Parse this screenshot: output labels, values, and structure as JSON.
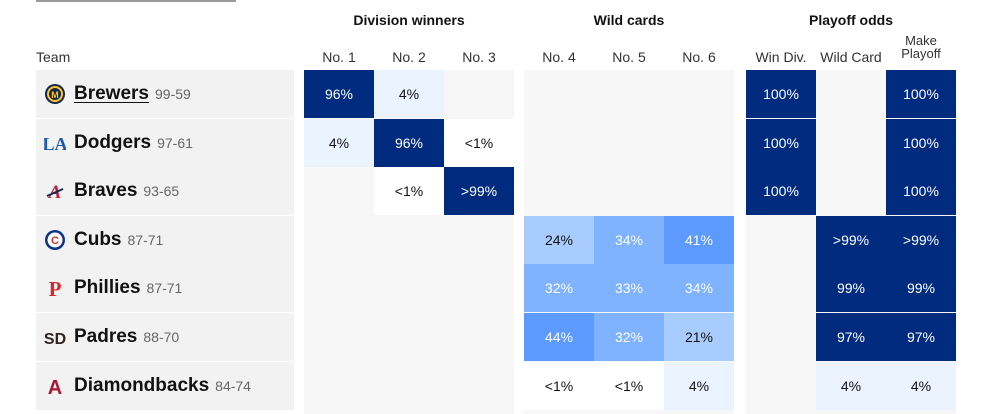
{
  "headers": {
    "team": "Team",
    "groups": [
      "Division winners",
      "Wild cards",
      "Playoff odds"
    ],
    "columns": [
      [
        "No. 1"
      ],
      [
        "No. 2"
      ],
      [
        "No. 3"
      ],
      [
        "No. 4"
      ],
      [
        "No. 5"
      ],
      [
        "No. 6"
      ],
      [
        "Win Div."
      ],
      [
        "Wild Card"
      ],
      [
        "Make",
        "Playoff"
      ]
    ]
  },
  "colors": {
    "dark": "#002b7f",
    "mid": "#5c9aff",
    "midlight": "#7fb2ff",
    "light": "#a9ccff",
    "pale": "#eaf3ff",
    "blank": "#f7f7f7"
  },
  "teams": [
    {
      "name": "Brewers",
      "record": "99-59",
      "logo": "brewers-logo",
      "linked": true,
      "cells": [
        "96%",
        "4%",
        "",
        "",
        "",
        "",
        "100%",
        "",
        "100%"
      ],
      "shades": [
        "dark",
        "pale",
        "none",
        "none",
        "none",
        "none",
        "dark",
        "none",
        "dark"
      ]
    },
    {
      "name": "Dodgers",
      "record": "97-61",
      "logo": "dodgers-logo",
      "linked": false,
      "cells": [
        "4%",
        "96%",
        "<1%",
        "",
        "",
        "",
        "100%",
        "",
        "100%"
      ],
      "shades": [
        "pale",
        "dark",
        "white",
        "none",
        "none",
        "none",
        "dark",
        "none",
        "dark"
      ]
    },
    {
      "name": "Braves",
      "record": "93-65",
      "logo": "braves-logo",
      "linked": false,
      "cells": [
        "",
        "<1%",
        ">99%",
        "",
        "",
        "",
        "100%",
        "",
        "100%"
      ],
      "shades": [
        "none",
        "white",
        "dark",
        "none",
        "none",
        "none",
        "dark",
        "none",
        "dark"
      ]
    },
    {
      "name": "Cubs",
      "record": "87-71",
      "logo": "cubs-logo",
      "linked": false,
      "cells": [
        "",
        "",
        "",
        "24%",
        "34%",
        "41%",
        "",
        ">99%",
        ">99%"
      ],
      "shades": [
        "none",
        "none",
        "none",
        "light",
        "midlight",
        "mid",
        "none",
        "dark",
        "dark"
      ]
    },
    {
      "name": "Phillies",
      "record": "87-71",
      "logo": "phillies-logo",
      "linked": false,
      "cells": [
        "",
        "",
        "",
        "32%",
        "33%",
        "34%",
        "",
        "99%",
        "99%"
      ],
      "shades": [
        "none",
        "none",
        "none",
        "midlight",
        "midlight",
        "midlight",
        "none",
        "dark",
        "dark"
      ]
    },
    {
      "name": "Padres",
      "record": "88-70",
      "logo": "padres-logo",
      "linked": false,
      "cells": [
        "",
        "",
        "",
        "44%",
        "32%",
        "21%",
        "",
        "97%",
        "97%"
      ],
      "shades": [
        "none",
        "none",
        "none",
        "mid",
        "midlight",
        "light",
        "none",
        "dark",
        "dark"
      ]
    },
    {
      "name": "Diamondbacks",
      "record": "84-74",
      "logo": "diamondbacks-logo",
      "linked": false,
      "cells": [
        "",
        "",
        "",
        "<1%",
        "<1%",
        "4%",
        "",
        "4%",
        "4%"
      ],
      "shades": [
        "none",
        "none",
        "none",
        "white",
        "white",
        "pale",
        "none",
        "pale",
        "pale"
      ]
    }
  ]
}
